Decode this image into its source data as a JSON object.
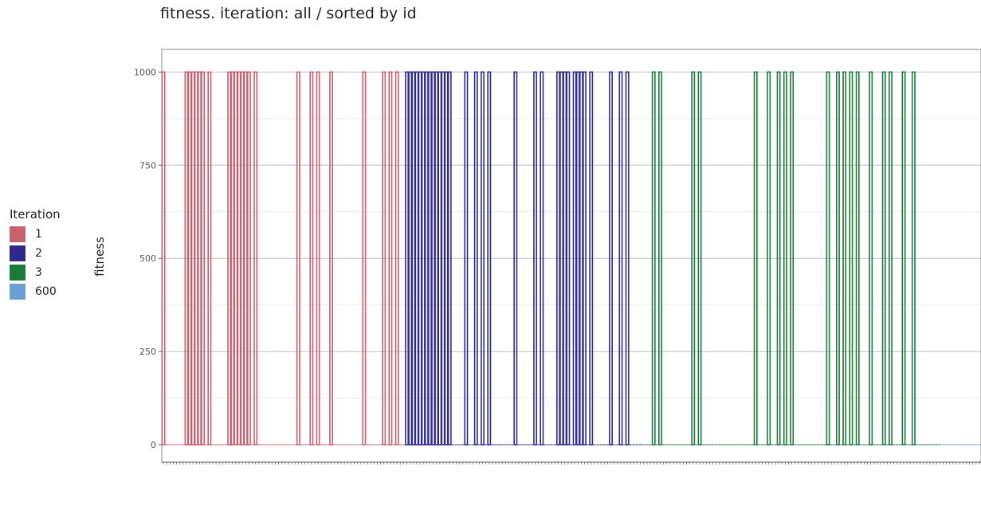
{
  "chart_data": {
    "type": "bar",
    "title": "fitness. iteration: all / sorted by id",
    "xlabel": "",
    "ylabel": "fitness",
    "ylim": [
      0,
      1050
    ],
    "yticks": [
      0,
      250,
      500,
      750,
      1000
    ],
    "ytick_labels": [
      "0",
      "250",
      "500",
      "750",
      "1000"
    ],
    "grid": true,
    "legend": {
      "title": "Iteration",
      "placement": "left",
      "entries": [
        {
          "label": "1",
          "color": "#c8606e"
        },
        {
          "label": "2",
          "color": "#2e2a8c"
        },
        {
          "label": "3",
          "color": "#1a7a3a"
        },
        {
          "label": "600",
          "color": "#6b9fd4"
        }
      ]
    },
    "series": [
      {
        "name": "1",
        "color": "#c8606e",
        "values": [
          1000,
          0,
          0,
          0,
          0,
          0,
          0,
          1000,
          1000,
          1000,
          1000,
          1000,
          1000,
          0,
          1000,
          0,
          0,
          0,
          0,
          0,
          1000,
          1000,
          1000,
          1000,
          1000,
          1000,
          1000,
          0,
          1000,
          0,
          0,
          0,
          0,
          0,
          0,
          0,
          0,
          0,
          0,
          0,
          0,
          1000,
          0,
          0,
          0,
          1000,
          0,
          1000,
          0,
          0,
          0,
          1000,
          0,
          0,
          0,
          0,
          0,
          0,
          0,
          0,
          0,
          1000,
          0,
          0,
          0,
          0,
          0,
          1000,
          0,
          1000,
          0,
          1000,
          0,
          0
        ]
      },
      {
        "name": "2",
        "color": "#2e2a8c",
        "values": [
          1000,
          1000,
          1000,
          1000,
          1000,
          1000,
          1000,
          1000,
          1000,
          1000,
          1000,
          1000,
          1000,
          1000,
          0,
          0,
          0,
          0,
          1000,
          0,
          0,
          1000,
          0,
          1000,
          0,
          1000,
          0,
          0,
          0,
          0,
          0,
          0,
          0,
          1000,
          0,
          0,
          0,
          0,
          0,
          1000,
          0,
          1000,
          0,
          0,
          0,
          0,
          1000,
          1000,
          1000,
          1000,
          0,
          1000,
          1000,
          1000,
          1000,
          0,
          1000,
          0,
          0,
          0,
          0,
          0,
          1000,
          0,
          0,
          1000,
          0,
          1000,
          0,
          0,
          0,
          0
        ]
      },
      {
        "name": "3",
        "color": "#1a7a3a",
        "values": [
          0,
          0,
          0,
          1000,
          0,
          1000,
          0,
          0,
          0,
          0,
          0,
          0,
          0,
          0,
          0,
          1000,
          0,
          1000,
          0,
          0,
          0,
          0,
          0,
          0,
          0,
          0,
          0,
          0,
          0,
          0,
          0,
          0,
          0,
          0,
          1000,
          0,
          0,
          0,
          1000,
          0,
          0,
          1000,
          0,
          1000,
          0,
          1000,
          0,
          0,
          0,
          0,
          0,
          0,
          0,
          0,
          0,
          0,
          1000,
          0,
          0,
          1000,
          0,
          1000,
          0,
          1000,
          0,
          1000,
          0,
          0,
          0,
          1000,
          0,
          0,
          0,
          1000,
          0,
          1000,
          0,
          0,
          0,
          1000,
          0,
          0,
          1000,
          0,
          0,
          0,
          0,
          0,
          0,
          0,
          0
        ]
      },
      {
        "name": "600",
        "color": "#6b9fd4",
        "values": [
          0,
          0,
          0,
          0,
          0,
          0,
          0,
          0,
          0,
          0,
          0,
          0
        ]
      }
    ]
  }
}
